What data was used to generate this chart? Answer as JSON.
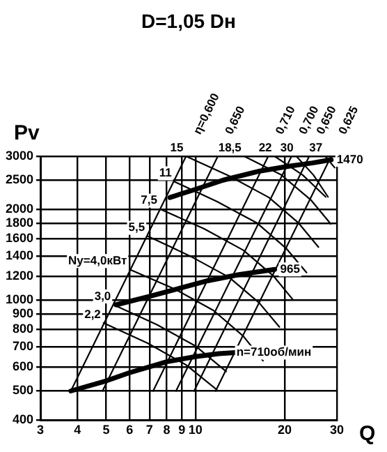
{
  "chart_data": {
    "type": "line",
    "title": "D=1,05 Dн",
    "xlabel": "Q",
    "ylabel": "Pv",
    "log": "xy",
    "grid": true,
    "legend": false,
    "marker": "none",
    "xlim": [
      3,
      30
    ],
    "xticks": [
      3,
      4,
      5,
      6,
      7,
      8,
      9,
      10,
      20,
      30
    ],
    "ylim": [
      400,
      3000
    ],
    "yticks": [
      400,
      500,
      600,
      700,
      800,
      900,
      1000,
      1200,
      1400,
      1600,
      1800,
      2000,
      2500,
      3000
    ],
    "series": [
      {
        "name": "n=710об/мин",
        "color": "#000000",
        "x": [
          3.8,
          5,
          6,
          8,
          10,
          12,
          13.6
        ],
        "values": [
          500,
          540,
          575,
          625,
          650,
          665,
          670
        ]
      },
      {
        "name": "965",
        "color": "#000000",
        "x": [
          5.4,
          7,
          9,
          11,
          14,
          18.5
        ],
        "values": [
          965,
          1030,
          1100,
          1160,
          1215,
          1265
        ]
      },
      {
        "name": "1470",
        "color": "#000000",
        "x": [
          8.2,
          10,
          12.4,
          16.5,
          20.7,
          24.8,
          28.7
        ],
        "values": [
          2190,
          2330,
          2500,
          2680,
          2780,
          2850,
          2920
        ]
      },
      {
        "name": "2,2",
        "color": "#000000",
        "x": [
          4.9,
          6.9,
          9.3,
          11.8
        ],
        "values": [
          840,
          720,
          610,
          505
        ]
      },
      {
        "name": "3,0",
        "color": "#000000",
        "x": [
          5.3,
          7.4,
          10,
          12.7
        ],
        "values": [
          965,
          830,
          705,
          580
        ]
      },
      {
        "name": "Ny=4,0кВт",
        "color": "#000000",
        "x": [
          6,
          8.5,
          11.5,
          14.5,
          16.9
        ],
        "values": [
          1265,
          1090,
          925,
          760,
          630
        ]
      },
      {
        "name": "5,5",
        "color": "#000000",
        "x": [
          6.9,
          9.6,
          13,
          16.4,
          19.2
        ],
        "values": [
          1630,
          1400,
          1190,
          980,
          815
        ]
      },
      {
        "name": "7,5",
        "color": "#000000",
        "x": [
          7.6,
          10.7,
          14.5,
          18.3,
          21.3
        ],
        "values": [
          2005,
          1725,
          1465,
          1205,
          1005
        ]
      },
      {
        "name": "11",
        "color": "#000000",
        "x": [
          8.5,
          11.8,
          16.1,
          20.3,
          23.7
        ],
        "values": [
          2470,
          2125,
          1805,
          1480,
          1235
        ]
      },
      {
        "name": "15",
        "color": "#000000",
        "x": [
          9.3,
          13,
          17.7,
          22.3,
          26
        ],
        "values": [
          3000,
          2580,
          2190,
          1800,
          1500
        ]
      },
      {
        "name": "18,5",
        "color": "#000000",
        "x": [
          14.6,
          19.4,
          24.5,
          28.6
        ],
        "values": [
          3000,
          2610,
          2150,
          1790
        ]
      },
      {
        "name": "22",
        "color": "#000000",
        "x": [
          18.5,
          23,
          27.5
        ],
        "values": [
          3000,
          2600,
          2200
        ]
      },
      {
        "name": "30",
        "color": "#000000",
        "x": [
          21.9,
          25,
          28
        ],
        "values": [
          3000,
          2600,
          2200
        ]
      },
      {
        "name": "37",
        "color": "#000000",
        "x": [
          27.4,
          29.5
        ],
        "values": [
          3000,
          2750
        ]
      },
      {
        "name": "η=0,600",
        "color": "#000000",
        "x": [
          3.8,
          9.3
        ],
        "values": [
          500,
          3000
        ]
      },
      {
        "name": "0,650",
        "color": "#000000",
        "x": [
          4.86,
          11.9
        ],
        "values": [
          500,
          3000
        ]
      },
      {
        "name": "0,710",
        "color": "#000000",
        "x": [
          7.2,
          17.6
        ],
        "values": [
          500,
          3000
        ]
      },
      {
        "name": "0,700",
        "color": "#000000",
        "x": [
          8.6,
          21.1
        ],
        "values": [
          500,
          3000
        ]
      },
      {
        "name": "0,650",
        "color": "#000000",
        "x": [
          9.9,
          24.2
        ],
        "values": [
          500,
          3000
        ]
      },
      {
        "name": "0,625",
        "color": "#000000",
        "x": [
          11.7,
          28.7
        ],
        "values": [
          500,
          3000
        ]
      }
    ]
  }
}
